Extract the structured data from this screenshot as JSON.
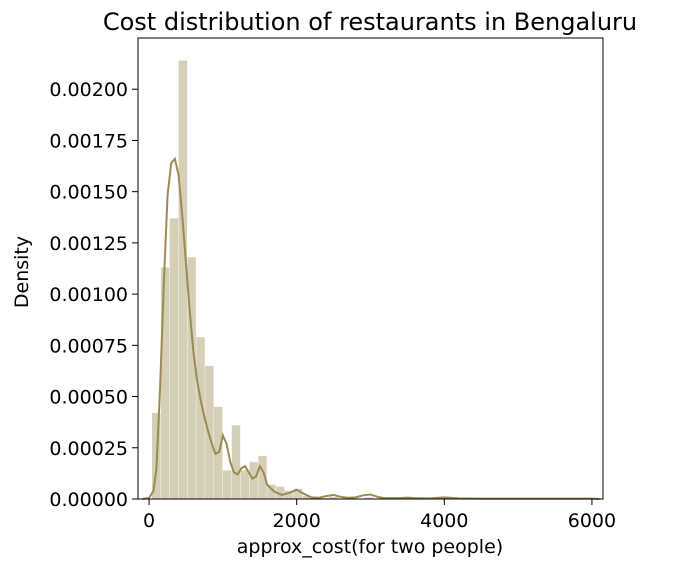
{
  "chart_data": {
    "type": "bar",
    "title": "Cost distribution of restaurants in Bengaluru",
    "xlabel": "approx_cost(for two people)",
    "ylabel": "Density",
    "xlim": [
      -150,
      6150
    ],
    "ylim": [
      0,
      0.00225
    ],
    "xticks": [
      0,
      2000,
      4000,
      6000
    ],
    "yticks": [
      0.0,
      0.00025,
      0.0005,
      0.00075,
      0.001,
      0.00125,
      0.0015,
      0.00175,
      0.002
    ],
    "ytick_labels": [
      "0.00000",
      "0.00025",
      "0.00050",
      "0.00075",
      "0.00100",
      "0.00125",
      "0.00150",
      "0.00175",
      "0.00200"
    ],
    "grid": false,
    "colors": {
      "hist": "#d6cfb8",
      "kde": "#9b8a52"
    },
    "histogram": {
      "bin_edges": [
        40,
        160,
        280,
        400,
        520,
        640,
        760,
        880,
        1000,
        1120,
        1240,
        1360,
        1480,
        1600,
        1720,
        1840,
        1960,
        2080,
        2200,
        2320,
        2440,
        2560,
        2680,
        2800,
        2920,
        3040,
        3160,
        3280,
        3400,
        3520,
        3640,
        3760,
        3880,
        4000,
        4120,
        4240,
        4360,
        4480,
        4600,
        4720,
        4840,
        4960,
        5080,
        5200,
        5320,
        5440,
        5560,
        5680,
        5800,
        5920,
        6040
      ],
      "density": [
        0.00042,
        0.00113,
        0.00137,
        0.00214,
        0.00118,
        0.00079,
        0.00065,
        0.00045,
        0.00014,
        0.00036,
        0.00014,
        0.00018,
        0.00021,
        7e-05,
        6e-05,
        4e-05,
        5e-05,
        1.5e-05,
        1e-05,
        4e-06,
        1e-05,
        3e-06,
        3e-06,
        2e-06,
        8e-06,
        3e-06,
        1e-06,
        1e-06,
        1e-06,
        1e-06,
        1e-06,
        1e-06,
        1e-06,
        3e-06,
        1e-06,
        1e-06,
        0,
        0,
        0,
        0,
        0,
        0,
        0,
        0,
        0,
        0,
        0,
        0,
        0,
        1e-06
      ]
    },
    "kde": {
      "x": [
        -90,
        0,
        60,
        100,
        150,
        200,
        250,
        300,
        350,
        400,
        450,
        500,
        550,
        600,
        650,
        700,
        750,
        800,
        850,
        900,
        950,
        1000,
        1050,
        1100,
        1150,
        1200,
        1250,
        1300,
        1350,
        1400,
        1450,
        1500,
        1550,
        1600,
        1700,
        1800,
        1900,
        2000,
        2100,
        2200,
        2300,
        2400,
        2500,
        2600,
        2700,
        2800,
        2900,
        3000,
        3100,
        3200,
        3400,
        3500,
        3600,
        3800,
        4000,
        4200,
        4500,
        5000,
        5500,
        6000,
        6100
      ],
      "y": [
        0.0,
        5e-06,
        4e-05,
        0.00015,
        0.00055,
        0.00105,
        0.00148,
        0.00164,
        0.00166,
        0.00158,
        0.00138,
        0.00115,
        0.00092,
        0.00072,
        0.00058,
        0.00048,
        0.0004,
        0.00033,
        0.00027,
        0.00022,
        0.00023,
        0.00031,
        0.00027,
        0.00018,
        0.00013,
        0.00012,
        0.00015,
        0.00016,
        0.00013,
        0.0001,
        0.00011,
        0.00016,
        0.00013,
        7e-05,
        3.5e-05,
        2e-05,
        3e-05,
        4.5e-05,
        2.5e-05,
        8e-06,
        6e-06,
        1.4e-05,
        2e-05,
        1e-05,
        6e-06,
        8e-06,
        1.8e-05,
        2.2e-05,
        1e-05,
        4e-06,
        5e-06,
        7e-06,
        4e-06,
        3e-06,
        8e-06,
        3e-06,
        2e-06,
        2e-06,
        2e-06,
        2e-06,
        0.0
      ]
    }
  }
}
